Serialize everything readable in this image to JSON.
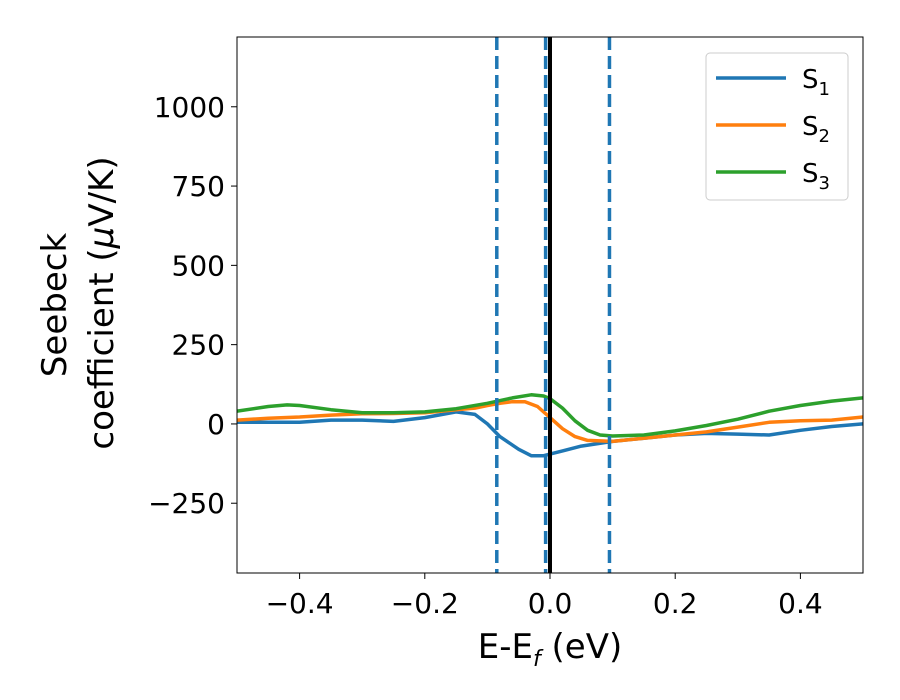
{
  "chart_data": {
    "type": "line",
    "xlabel": {
      "main": "E-E",
      "sub": "f",
      "unit": " (eV)"
    },
    "ylabel": {
      "line1": "Seebeck",
      "line2_prefix": "coefficient  (",
      "mu": "μ",
      "line2_suffix": "V/K)"
    },
    "xlim": [
      -0.5,
      0.5
    ],
    "ylim": [
      -470,
      1220
    ],
    "x_ticks": [
      -0.4,
      -0.2,
      0.0,
      0.2,
      0.4
    ],
    "x_tick_labels": [
      "−0.4",
      "−0.2",
      "0.0",
      "0.2",
      "0.4"
    ],
    "y_ticks": [
      -250,
      0,
      250,
      500,
      750,
      1000
    ],
    "y_tick_labels": [
      "−250",
      "0",
      "250",
      "500",
      "750",
      "1000"
    ],
    "legend_position": "top-right",
    "grid": false,
    "series": [
      {
        "name": "S",
        "sub": "1",
        "color": "#1f77b4",
        "x": [
          -0.5,
          -0.45,
          -0.4,
          -0.35,
          -0.3,
          -0.25,
          -0.2,
          -0.15,
          -0.12,
          -0.1,
          -0.08,
          -0.05,
          -0.03,
          -0.01,
          0.0,
          0.02,
          0.05,
          0.1,
          0.15,
          0.2,
          0.25,
          0.3,
          0.35,
          0.4,
          0.45,
          0.5
        ],
        "y": [
          5,
          5,
          5,
          12,
          12,
          8,
          20,
          38,
          30,
          0,
          -40,
          -80,
          -100,
          -100,
          -95,
          -85,
          -70,
          -55,
          -45,
          -35,
          -30,
          -32,
          -35,
          -20,
          -8,
          0
        ]
      },
      {
        "name": "S",
        "sub": "2",
        "color": "#ff7f0e",
        "x": [
          -0.5,
          -0.45,
          -0.4,
          -0.35,
          -0.3,
          -0.25,
          -0.2,
          -0.15,
          -0.12,
          -0.1,
          -0.08,
          -0.06,
          -0.04,
          -0.02,
          0.0,
          0.02,
          0.04,
          0.06,
          0.1,
          0.15,
          0.2,
          0.25,
          0.3,
          0.35,
          0.4,
          0.45,
          0.5
        ],
        "y": [
          12,
          18,
          22,
          28,
          32,
          33,
          35,
          45,
          50,
          58,
          65,
          70,
          70,
          55,
          20,
          -15,
          -40,
          -52,
          -55,
          -45,
          -35,
          -25,
          -10,
          5,
          10,
          12,
          22
        ]
      },
      {
        "name": "S",
        "sub": "3",
        "color": "#2ca02c",
        "x": [
          -0.5,
          -0.45,
          -0.42,
          -0.4,
          -0.35,
          -0.3,
          -0.25,
          -0.2,
          -0.15,
          -0.1,
          -0.06,
          -0.03,
          -0.01,
          0.0,
          0.02,
          0.04,
          0.06,
          0.08,
          0.1,
          0.15,
          0.2,
          0.25,
          0.3,
          0.35,
          0.4,
          0.45,
          0.5
        ],
        "y": [
          40,
          55,
          60,
          58,
          45,
          35,
          35,
          38,
          48,
          65,
          82,
          92,
          88,
          80,
          50,
          10,
          -20,
          -35,
          -38,
          -35,
          -22,
          -5,
          15,
          40,
          58,
          72,
          82
        ]
      }
    ],
    "vlines": [
      {
        "x": -0.085,
        "style": "dashed",
        "color": "#1f77b4"
      },
      {
        "x": -0.007,
        "style": "dashed",
        "color": "#1f77b4"
      },
      {
        "x": 0.095,
        "style": "dashed",
        "color": "#1f77b4"
      },
      {
        "x": 0.0,
        "style": "solid",
        "color": "#000000"
      }
    ]
  }
}
